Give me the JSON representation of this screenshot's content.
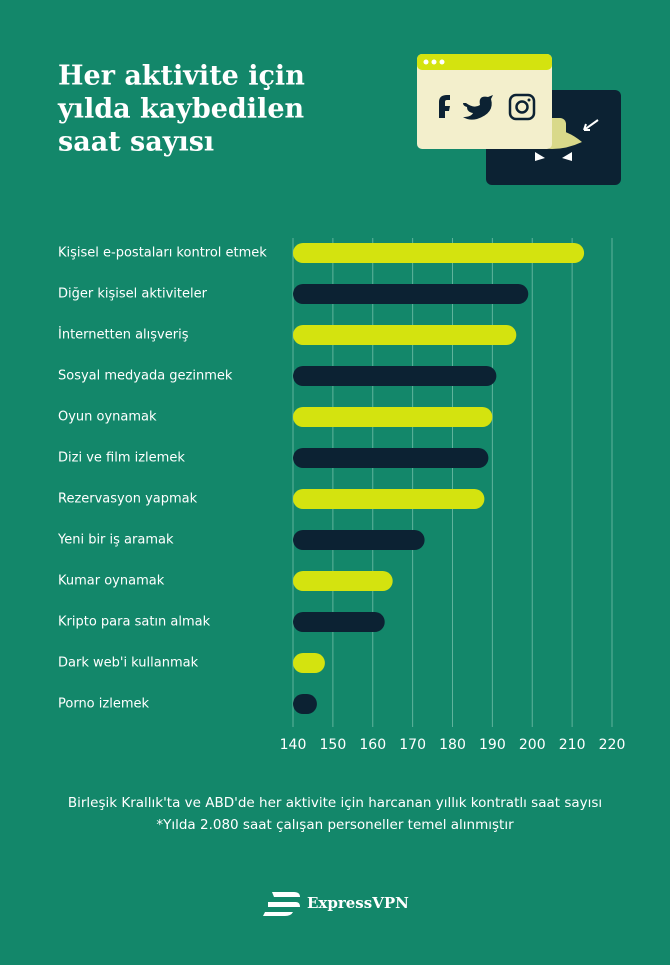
{
  "chart_data": {
    "type": "barh",
    "title": [
      "Her aktivite için",
      "yılda kaybedilen",
      "saat sayısı"
    ],
    "categories": [
      "Kişisel e-postaları kontrol etmek",
      "Diğer kişisel aktiviteler",
      "İnternetten alışveriş",
      "Sosyal medyada gezinmek",
      "Oyun oynamak",
      "Dizi ve film izlemek",
      "Rezervasyon yapmak",
      "Yeni bir iş aramak",
      "Kumar oynamak",
      "Kripto para satın almak",
      "Dark web'i kullanmak",
      "Porno izlemek"
    ],
    "values": [
      213,
      199,
      196,
      191,
      190,
      189,
      188,
      173,
      165,
      163,
      148,
      146
    ],
    "colors": [
      "#d4e30f",
      "#0c2233",
      "#d4e30f",
      "#0c2233",
      "#d4e30f",
      "#0c2233",
      "#d4e30f",
      "#0c2233",
      "#d4e30f",
      "#0c2233",
      "#d4e30f",
      "#0c2233"
    ],
    "xlim": [
      140,
      220
    ],
    "xticks": [
      140,
      150,
      160,
      170,
      180,
      190,
      200,
      210,
      220
    ],
    "grid": true,
    "caption": "Birleşik Krallık'ta ve ABD'de her aktivite için harcanan yıllık kontratlı saat sayısı",
    "note": "*Yılda 2.080 saat çalışan personeller temel alınmıştır",
    "brand": "ExpressVPN"
  }
}
